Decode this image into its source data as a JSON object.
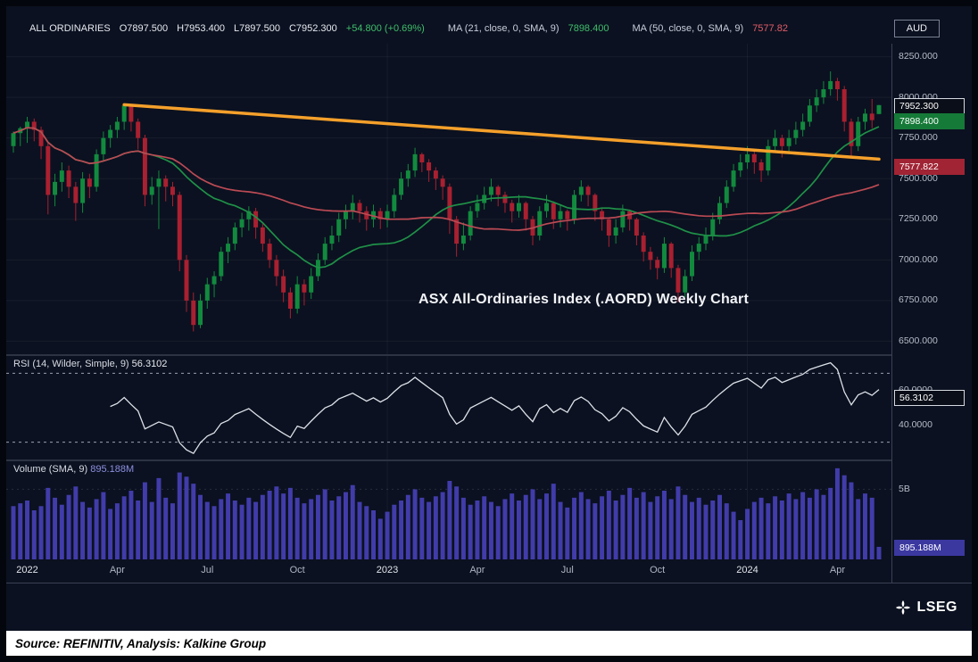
{
  "header": {
    "instrument": "ALL ORDINARIES",
    "open": "O7897.500",
    "high": "H7953.400",
    "low": "L7897.500",
    "close": "C7952.300",
    "change": "+54.800 (+0.69%)",
    "ma21_label": "MA (21, close, 0, SMA, 9)",
    "ma21_value": "7898.400",
    "ma50_label": "MA (50, close, 0, SMA, 9)",
    "ma50_value": "7577.82",
    "currency": "AUD"
  },
  "annotation": "ASX All-Ordinaries Index (.AORD) Weekly Chart",
  "rsi_panel": {
    "label": "RSI (14, Wilder, Simple, 9)",
    "value": "56.3102"
  },
  "volume_panel": {
    "label": "Volume (SMA, 9)",
    "value": "895.188M"
  },
  "footer": {
    "logo_text": "LSEG",
    "source": "Source: REFINITIV, Analysis: Kalkine Group"
  },
  "colors": {
    "background": "#0b1120",
    "up": "#128a3e",
    "down": "#a92030",
    "ma21": "#1f9148",
    "ma50": "#bb4a54",
    "trendline": "#f5a02b",
    "rsi_line": "#dde1e9",
    "volume_bar": "#413caa",
    "axis_text": "#b7bdca",
    "grid": "rgba(255,255,255,0.05)"
  },
  "chart_data": {
    "type": "candlestick",
    "frequency": "weekly",
    "title": "ASX All-Ordinaries Index (.AORD) Weekly Chart",
    "legend": [
      "ALL ORDINARIES OHLC",
      "MA 21 (SMA)",
      "MA 50 (SMA)",
      "RSI 14 (Wilder)",
      "Volume (SMA 9)"
    ],
    "x_ticks": [
      {
        "label": "2022",
        "index": 2,
        "major": true
      },
      {
        "label": "Apr",
        "index": 15,
        "major": false
      },
      {
        "label": "Jul",
        "index": 28,
        "major": false
      },
      {
        "label": "Oct",
        "index": 41,
        "major": false
      },
      {
        "label": "2023",
        "index": 54,
        "major": true
      },
      {
        "label": "Apr",
        "index": 67,
        "major": false
      },
      {
        "label": "Jul",
        "index": 80,
        "major": false
      },
      {
        "label": "Oct",
        "index": 93,
        "major": false
      },
      {
        "label": "2024",
        "index": 106,
        "major": true
      },
      {
        "label": "Apr",
        "index": 119,
        "major": false
      }
    ],
    "price_axis": {
      "min": 6420,
      "max": 8330,
      "ticks": [
        {
          "v": 8250,
          "label": "8250.000"
        },
        {
          "v": 8000,
          "label": "8000.000"
        },
        {
          "v": 7750,
          "label": "7750.000"
        },
        {
          "v": 7500,
          "label": "7500.000"
        },
        {
          "v": 7250,
          "label": "7250.000"
        },
        {
          "v": 7000,
          "label": "7000.000"
        },
        {
          "v": 6750,
          "label": "6750.000"
        },
        {
          "v": 6500,
          "label": "6500.000"
        }
      ],
      "badges": [
        {
          "value": 7952.3,
          "label": "7952.300",
          "bg": "#0a0e18",
          "border": "#d5d9e0",
          "name": "last-price-badge"
        },
        {
          "value": 7898.4,
          "label": "7898.400",
          "bg": "#157a38",
          "border": "",
          "name": "ma21-badge"
        },
        {
          "value": 7577.822,
          "label": "7577.822",
          "bg": "#a02434",
          "border": "",
          "name": "ma50-badge"
        }
      ]
    },
    "candles": [
      [
        7700,
        7790,
        7660,
        7780
      ],
      [
        7780,
        7820,
        7700,
        7810
      ],
      [
        7810,
        7880,
        7720,
        7850
      ],
      [
        7850,
        7870,
        7730,
        7800
      ],
      [
        7800,
        7820,
        7620,
        7700
      ],
      [
        7700,
        7720,
        7280,
        7400
      ],
      [
        7400,
        7530,
        7330,
        7480
      ],
      [
        7480,
        7600,
        7420,
        7550
      ],
      [
        7550,
        7580,
        7380,
        7450
      ],
      [
        7450,
        7480,
        7240,
        7350
      ],
      [
        7350,
        7540,
        7290,
        7500
      ],
      [
        7500,
        7530,
        7380,
        7450
      ],
      [
        7450,
        7680,
        7420,
        7650
      ],
      [
        7650,
        7790,
        7610,
        7750
      ],
      [
        7750,
        7830,
        7690,
        7800
      ],
      [
        7800,
        7880,
        7750,
        7850
      ],
      [
        7850,
        7955,
        7800,
        7950
      ],
      [
        7950,
        7960,
        7790,
        7850
      ],
      [
        7850,
        7870,
        7680,
        7750
      ],
      [
        7750,
        7770,
        7330,
        7400
      ],
      [
        7400,
        7510,
        7340,
        7450
      ],
      [
        7450,
        7550,
        7190,
        7500
      ],
      [
        7500,
        7520,
        7360,
        7450
      ],
      [
        7450,
        7480,
        7330,
        7400
      ],
      [
        7400,
        7420,
        6930,
        7000
      ],
      [
        7000,
        7030,
        6680,
        6750
      ],
      [
        6750,
        6800,
        6560,
        6600
      ],
      [
        6600,
        6790,
        6580,
        6750
      ],
      [
        6750,
        6890,
        6700,
        6850
      ],
      [
        6850,
        6930,
        6770,
        6900
      ],
      [
        6900,
        7080,
        6870,
        7050
      ],
      [
        7050,
        7140,
        6980,
        7100
      ],
      [
        7100,
        7230,
        7060,
        7200
      ],
      [
        7200,
        7290,
        7140,
        7250
      ],
      [
        7250,
        7330,
        7180,
        7300
      ],
      [
        7300,
        7320,
        7130,
        7200
      ],
      [
        7200,
        7230,
        7050,
        7100
      ],
      [
        7100,
        7130,
        6950,
        7000
      ],
      [
        7000,
        7030,
        6840,
        6900
      ],
      [
        6900,
        6940,
        6740,
        6800
      ],
      [
        6800,
        6830,
        6640,
        6700
      ],
      [
        6700,
        6900,
        6670,
        6850
      ],
      [
        6850,
        6880,
        6720,
        6800
      ],
      [
        6800,
        6950,
        6760,
        6900
      ],
      [
        6900,
        7040,
        6870,
        7000
      ],
      [
        7000,
        7140,
        6970,
        7100
      ],
      [
        7100,
        7210,
        7060,
        7150
      ],
      [
        7150,
        7290,
        7110,
        7250
      ],
      [
        7250,
        7340,
        7190,
        7300
      ],
      [
        7300,
        7400,
        7250,
        7350
      ],
      [
        7350,
        7370,
        7230,
        7300
      ],
      [
        7300,
        7330,
        7180,
        7250
      ],
      [
        7250,
        7340,
        7200,
        7300
      ],
      [
        7300,
        7320,
        7190,
        7250
      ],
      [
        7250,
        7340,
        7200,
        7300
      ],
      [
        7300,
        7440,
        7260,
        7400
      ],
      [
        7400,
        7540,
        7370,
        7500
      ],
      [
        7500,
        7590,
        7450,
        7550
      ],
      [
        7550,
        7690,
        7510,
        7650
      ],
      [
        7650,
        7660,
        7540,
        7600
      ],
      [
        7600,
        7620,
        7480,
        7550
      ],
      [
        7550,
        7570,
        7430,
        7500
      ],
      [
        7500,
        7520,
        7370,
        7450
      ],
      [
        7450,
        7470,
        7160,
        7250
      ],
      [
        7250,
        7270,
        7020,
        7100
      ],
      [
        7100,
        7230,
        7060,
        7150
      ],
      [
        7150,
        7330,
        7120,
        7300
      ],
      [
        7300,
        7400,
        7260,
        7350
      ],
      [
        7350,
        7450,
        7310,
        7400
      ],
      [
        7400,
        7500,
        7360,
        7450
      ],
      [
        7450,
        7460,
        7330,
        7400
      ],
      [
        7400,
        7420,
        7290,
        7350
      ],
      [
        7350,
        7370,
        7230,
        7300
      ],
      [
        7300,
        7400,
        7260,
        7350
      ],
      [
        7350,
        7360,
        7180,
        7250
      ],
      [
        7250,
        7270,
        7090,
        7150
      ],
      [
        7150,
        7330,
        7120,
        7300
      ],
      [
        7300,
        7400,
        7260,
        7350
      ],
      [
        7350,
        7360,
        7190,
        7250
      ],
      [
        7250,
        7340,
        7200,
        7300
      ],
      [
        7300,
        7310,
        7180,
        7250
      ],
      [
        7250,
        7430,
        7220,
        7400
      ],
      [
        7400,
        7490,
        7360,
        7450
      ],
      [
        7450,
        7460,
        7330,
        7400
      ],
      [
        7400,
        7410,
        7240,
        7300
      ],
      [
        7300,
        7320,
        7180,
        7250
      ],
      [
        7250,
        7260,
        7080,
        7150
      ],
      [
        7150,
        7250,
        7100,
        7200
      ],
      [
        7200,
        7340,
        7170,
        7300
      ],
      [
        7300,
        7310,
        7180,
        7250
      ],
      [
        7250,
        7260,
        7090,
        7150
      ],
      [
        7150,
        7170,
        6990,
        7050
      ],
      [
        7050,
        7080,
        6940,
        7000
      ],
      [
        7000,
        7020,
        6880,
        6950
      ],
      [
        6950,
        7140,
        6920,
        7100
      ],
      [
        7100,
        7110,
        6890,
        6950
      ],
      [
        6950,
        6970,
        6740,
        6800
      ],
      [
        6800,
        6940,
        6770,
        6900
      ],
      [
        6900,
        7090,
        6870,
        7050
      ],
      [
        7050,
        7140,
        7000,
        7100
      ],
      [
        7100,
        7200,
        7060,
        7150
      ],
      [
        7150,
        7290,
        7120,
        7250
      ],
      [
        7250,
        7390,
        7220,
        7350
      ],
      [
        7350,
        7490,
        7320,
        7450
      ],
      [
        7450,
        7590,
        7420,
        7550
      ],
      [
        7550,
        7650,
        7510,
        7600
      ],
      [
        7600,
        7700,
        7560,
        7650
      ],
      [
        7650,
        7670,
        7530,
        7600
      ],
      [
        7600,
        7620,
        7480,
        7550
      ],
      [
        7550,
        7740,
        7520,
        7700
      ],
      [
        7700,
        7800,
        7660,
        7750
      ],
      [
        7750,
        7770,
        7630,
        7700
      ],
      [
        7700,
        7800,
        7660,
        7750
      ],
      [
        7750,
        7850,
        7710,
        7800
      ],
      [
        7800,
        7900,
        7760,
        7850
      ],
      [
        7850,
        7990,
        7820,
        7950
      ],
      [
        7950,
        8050,
        7910,
        8000
      ],
      [
        8000,
        8100,
        7960,
        8050
      ],
      [
        8050,
        8160,
        8010,
        8100
      ],
      [
        8100,
        8120,
        7980,
        8050
      ],
      [
        8050,
        8070,
        7790,
        7850
      ],
      [
        7850,
        7870,
        7640,
        7700
      ],
      [
        7700,
        7880,
        7670,
        7850
      ],
      [
        7850,
        7930,
        7800,
        7900
      ],
      [
        7900,
        7990,
        7810,
        7860
      ],
      [
        7897.5,
        7953.4,
        7897.5,
        7952.3
      ]
    ],
    "ma": {
      "ma21_window": 21,
      "ma50_window": 50,
      "ma21_last": 7898.4,
      "ma50_last": 7577.822
    },
    "trendline": {
      "from_index": 16,
      "from_value": 7955,
      "to_index": 125,
      "to_value": 7620
    },
    "rsi": {
      "period": 14,
      "range": [
        20,
        80
      ],
      "upper_band": 70,
      "lower_band": 30,
      "last": 56.3102,
      "ticks": [
        {
          "v": 60,
          "label": "60.0000"
        },
        {
          "v": 40,
          "label": "40.0000"
        }
      ],
      "badge": {
        "value": 56.3102,
        "label": "56.3102",
        "bg": "#0a0e18",
        "border": "#d5d9e0"
      }
    },
    "volume_axis": {
      "max_billions": 7,
      "ticks": [
        {
          "v": 5,
          "label": "5B"
        }
      ],
      "badge": {
        "label": "895.188M",
        "value_billions": 0.895,
        "bg": "#3b38a0"
      }
    },
    "volumes_billions": [
      3.8,
      4.0,
      4.2,
      3.5,
      3.8,
      5.1,
      4.4,
      3.9,
      4.6,
      5.2,
      4.1,
      3.7,
      4.3,
      4.8,
      3.6,
      4.0,
      4.5,
      4.9,
      4.2,
      5.5,
      4.1,
      5.8,
      4.4,
      4.0,
      6.2,
      5.9,
      5.4,
      4.6,
      4.1,
      3.8,
      4.3,
      4.7,
      4.2,
      3.9,
      4.4,
      4.1,
      4.6,
      4.9,
      5.2,
      4.7,
      5.1,
      4.4,
      4.0,
      4.3,
      4.6,
      5.0,
      4.2,
      4.5,
      4.8,
      5.3,
      4.1,
      3.8,
      3.5,
      2.9,
      3.4,
      3.9,
      4.2,
      4.6,
      5.0,
      4.4,
      4.1,
      4.5,
      4.8,
      5.6,
      5.2,
      4.4,
      3.9,
      4.2,
      4.5,
      4.1,
      3.8,
      4.3,
      4.7,
      4.2,
      4.6,
      5.0,
      4.3,
      4.7,
      5.4,
      4.1,
      3.7,
      4.4,
      4.8,
      4.3,
      4.0,
      4.5,
      4.9,
      4.2,
      4.6,
      5.1,
      4.4,
      4.8,
      4.1,
      4.5,
      4.9,
      4.3,
      5.2,
      4.6,
      4.1,
      4.4,
      3.9,
      4.2,
      4.6,
      4.0,
      3.4,
      2.8,
      3.6,
      4.1,
      4.4,
      4.0,
      4.5,
      4.2,
      4.7,
      4.3,
      4.8,
      4.4,
      5.0,
      4.6,
      5.1,
      6.5,
      6.0,
      5.5,
      4.3,
      4.7,
      4.4,
      0.895
    ]
  }
}
